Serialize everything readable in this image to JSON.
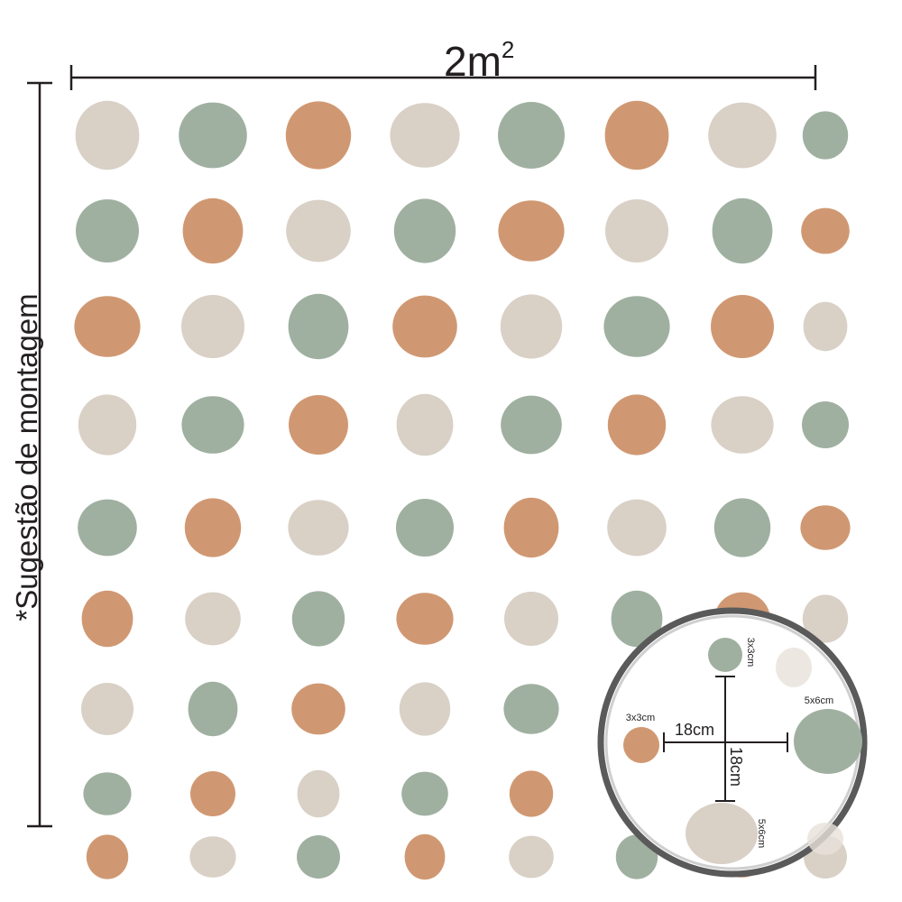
{
  "top_dimension": {
    "label": "2m",
    "superscript": "2"
  },
  "side_dimension": {
    "label": "*Sugestão de montagem"
  },
  "magnifier": {
    "top_dot": "3x3cm",
    "left_dot": "3x3cm",
    "right_dot": "5x6cm",
    "bottom_dot": "5x6cm",
    "horizontal_spacing": "18cm",
    "vertical_spacing": "18cm"
  }
}
